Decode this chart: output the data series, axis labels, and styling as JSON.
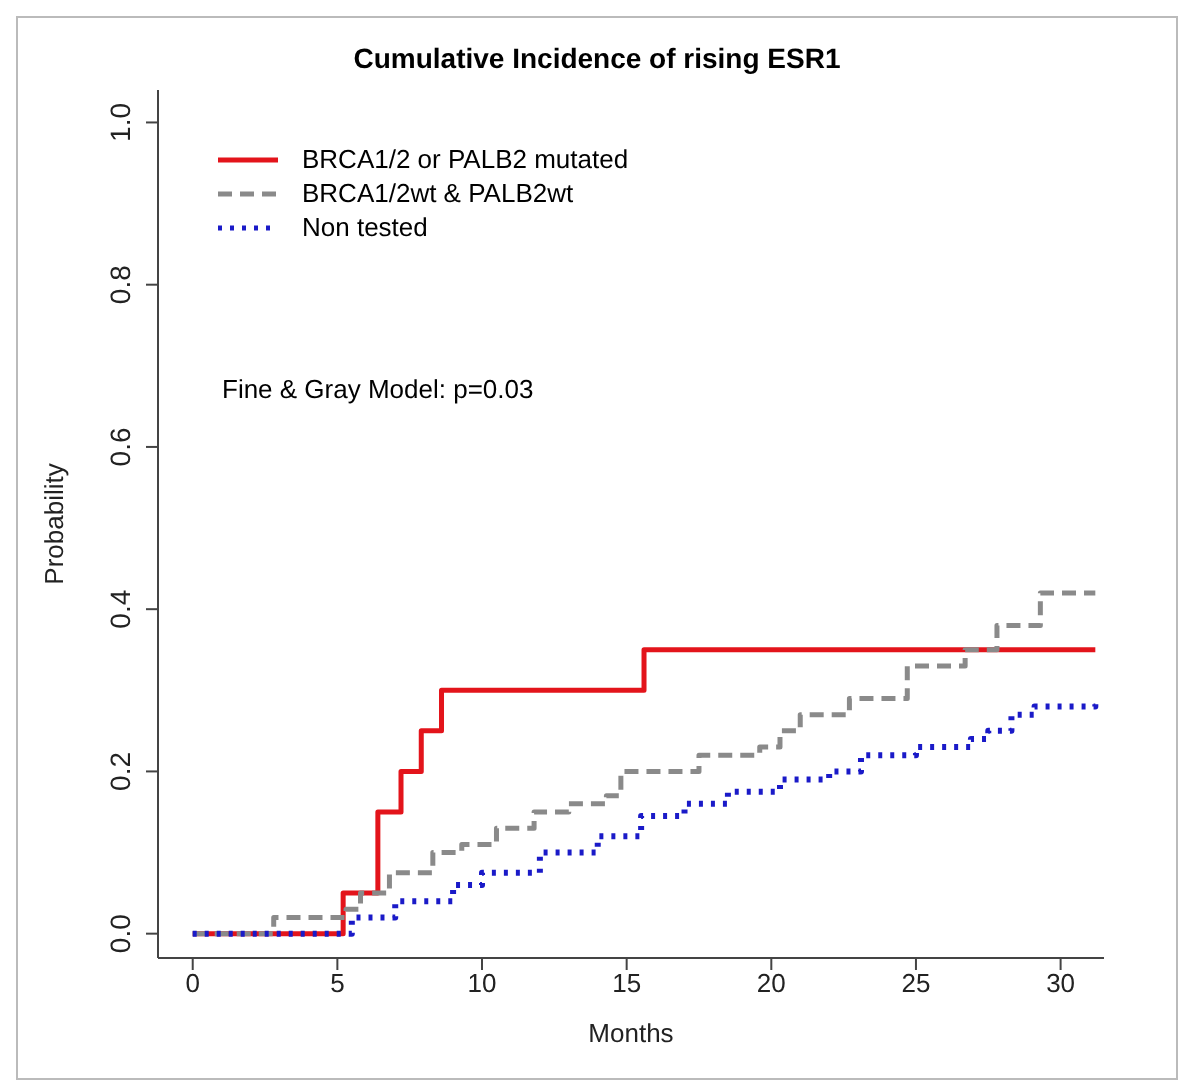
{
  "chart_data": {
    "type": "step",
    "title": "Cumulative Incidence of rising ESR1",
    "xlabel": "Months",
    "ylabel": "Probability",
    "xlim": [
      -1.2,
      31.5
    ],
    "xticks": [
      0,
      5,
      10,
      15,
      20,
      25,
      30
    ],
    "ylim": [
      -0.03,
      1.04
    ],
    "yticks": [
      {
        "value": 0,
        "label": "0.0"
      },
      0.2,
      0.4,
      0.6,
      0.8,
      {
        "value": 1,
        "label": "1.0"
      }
    ],
    "grid": false,
    "legend": "top left",
    "marker": "none",
    "annotations": [
      "Fine & Gray Model: p=0.03"
    ],
    "series": [
      {
        "name": "BRCA1/2 or PALB2 mutated",
        "color": "#e3141b",
        "line_style": "solid",
        "x": [
          0,
          5.2,
          6.4,
          7.2,
          7.9,
          8.6,
          15.6,
          31.2
        ],
        "values": [
          0,
          0.05,
          0.15,
          0.2,
          0.25,
          0.3,
          0.35,
          0.35
        ]
      },
      {
        "name": "BRCA1/2wt & PALB2wt",
        "color": "#8a8a8a",
        "line_style": "dashed",
        "x": [
          0,
          2.8,
          5.3,
          5.8,
          6.8,
          8.3,
          9.3,
          10.5,
          11.8,
          13.0,
          14.3,
          14.8,
          17.5,
          19.6,
          20.3,
          21.0,
          22.7,
          24.7,
          26.7,
          27.8,
          29.3,
          31.2
        ],
        "values": [
          0,
          0.02,
          0.03,
          0.05,
          0.075,
          0.1,
          0.11,
          0.13,
          0.15,
          0.16,
          0.17,
          0.2,
          0.22,
          0.23,
          0.25,
          0.27,
          0.29,
          0.33,
          0.35,
          0.38,
          0.42,
          0.42
        ]
      },
      {
        "name": "Non tested",
        "color": "#1a1ac8",
        "line_style": "dotted",
        "x": [
          0,
          5.0,
          5.5,
          7.0,
          9.0,
          10.0,
          12.0,
          14.0,
          15.5,
          17.0,
          18.5,
          20.3,
          22.0,
          23.1,
          25.0,
          26.9,
          27.5,
          28.3,
          29.1,
          31.2
        ],
        "values": [
          0,
          0,
          0.02,
          0.04,
          0.06,
          0.075,
          0.1,
          0.12,
          0.145,
          0.16,
          0.175,
          0.19,
          0.2,
          0.22,
          0.23,
          0.24,
          0.25,
          0.27,
          0.28,
          0.29
        ]
      }
    ]
  }
}
